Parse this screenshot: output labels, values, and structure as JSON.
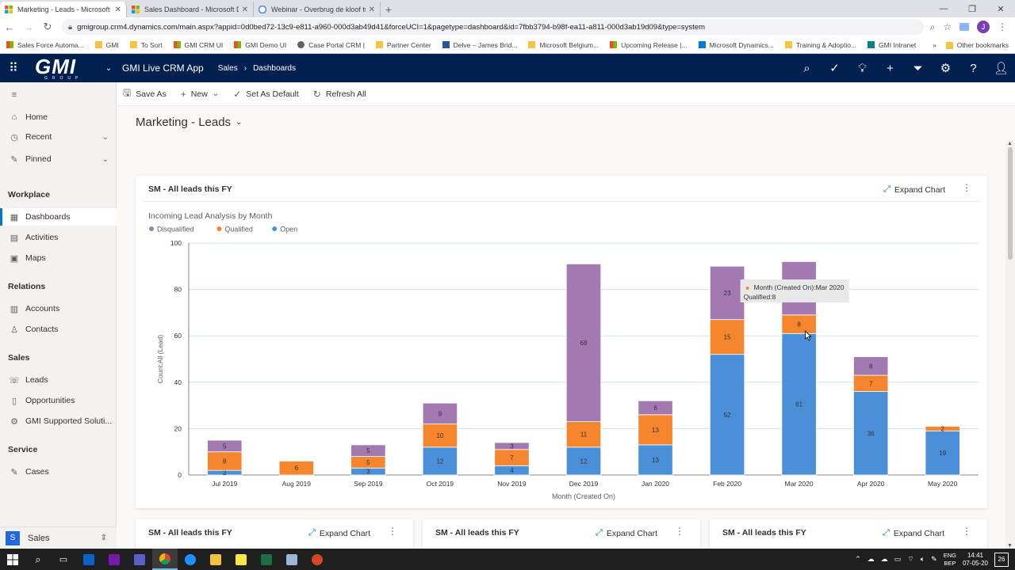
{
  "browser": {
    "tabs": [
      {
        "title": "Marketing - Leads - Microsoft Dy",
        "active": true
      },
      {
        "title": "Sales Dashboard - Microsoft Dyn",
        "active": false
      },
      {
        "title": "Webinar - Overbrug de kloof tus",
        "active": false
      }
    ],
    "url": "gmigroup.crm4.dynamics.com/main.aspx?appid=0d0bed72-13c9-e811-a960-000d3ab49d41&forceUCI=1&pagetype=dashboard&id=7fbb3794-b98f-ea11-a811-000d3ab19d09&type=system",
    "profile_initial": "J",
    "bookmarks": [
      "Sales Force Automa...",
      "GMI",
      "To Sort",
      "GMI CRM UI",
      "GMI Demo UI",
      "Case Portal CRM |",
      "Partner Center",
      "Delve – James Brid...",
      "Microsoft Belgium...",
      "Upcoming Release |...",
      "Microsoft Dynamics...",
      "Training & Adoptio...",
      "GMI Intranet"
    ],
    "bookmarks_overflow": "»",
    "other_bookmarks": "Other bookmarks"
  },
  "app": {
    "logo_text": "GMI",
    "logo_subtext": "GROUP",
    "name": "GMI Live CRM App",
    "breadcrumb": [
      "Sales",
      "Dashboards"
    ],
    "brand_color": "#002050"
  },
  "nav": {
    "top": [
      {
        "label": "Home",
        "icon": "home-icon"
      },
      {
        "label": "Recent",
        "icon": "clock-icon"
      },
      {
        "label": "Pinned",
        "icon": "pin-icon"
      }
    ],
    "groups": [
      {
        "title": "Workplace",
        "items": [
          {
            "label": "Dashboards",
            "icon": "dashboard-icon",
            "selected": true
          },
          {
            "label": "Activities",
            "icon": "clipboard-icon"
          },
          {
            "label": "Maps",
            "icon": "map-icon"
          }
        ]
      },
      {
        "title": "Relations",
        "items": [
          {
            "label": "Accounts",
            "icon": "building-icon"
          },
          {
            "label": "Contacts",
            "icon": "person-icon"
          }
        ]
      },
      {
        "title": "Sales",
        "items": [
          {
            "label": "Leads",
            "icon": "phone-icon"
          },
          {
            "label": "Opportunities",
            "icon": "document-icon"
          },
          {
            "label": "GMI Supported Soluti...",
            "icon": "gear-icon"
          }
        ]
      },
      {
        "title": "Service",
        "items": [
          {
            "label": "Cases",
            "icon": "wrench-icon"
          }
        ]
      }
    ],
    "area": {
      "badge": "S",
      "label": "Sales"
    }
  },
  "commands": [
    "Save As",
    "New",
    "Set As Default",
    "Refresh All"
  ],
  "dashboard": {
    "title": "Marketing - Leads",
    "main_card": {
      "title": "SM - All leads this FY",
      "expand": "Expand Chart"
    },
    "small_cards": [
      {
        "title": "SM - All leads this FY",
        "expand": "Expand Chart"
      },
      {
        "title": "SM - All leads this FY",
        "expand": "Expand Chart"
      },
      {
        "title": "SM - All leads this FY",
        "expand": "Expand Chart"
      }
    ]
  },
  "chart_data": {
    "type": "bar",
    "stacked": true,
    "title": "Incoming Lead Analysis by Month",
    "xlabel": "Month (Created On)",
    "ylabel": "Count:All (Lead)",
    "ylim": [
      0,
      100
    ],
    "yticks": [
      0,
      20,
      40,
      60,
      80,
      100
    ],
    "grid": true,
    "legend_position": "top-left",
    "categories": [
      "Jul 2019",
      "Aug 2019",
      "Sep 2019",
      "Oct 2019",
      "Nov 2019",
      "Dec 2019",
      "Jan 2020",
      "Feb 2020",
      "Mar 2020",
      "Apr 2020",
      "May 2020"
    ],
    "series": [
      {
        "name": "Open",
        "color": "#4a90d9",
        "values": [
          2,
          0,
          3,
          12,
          4,
          12,
          13,
          52,
          61,
          36,
          19
        ]
      },
      {
        "name": "Qualified",
        "color": "#f5862e",
        "values": [
          8,
          6,
          5,
          10,
          7,
          11,
          13,
          15,
          8,
          7,
          2
        ]
      },
      {
        "name": "Disqualified",
        "color": "#a379b1",
        "values": [
          5,
          0,
          5,
          9,
          3,
          68,
          6,
          23,
          23,
          8,
          0
        ]
      }
    ],
    "legend_order": [
      "Disqualified",
      "Qualified",
      "Open"
    ],
    "tooltip": {
      "line1": "Month (Created On):Mar 2020",
      "line2": "Qualified:8",
      "category_index": 8
    }
  },
  "taskbar": {
    "language": [
      "ENG",
      "BEP"
    ],
    "time": "14:41",
    "date": "07-05-20",
    "notifications": "26"
  }
}
